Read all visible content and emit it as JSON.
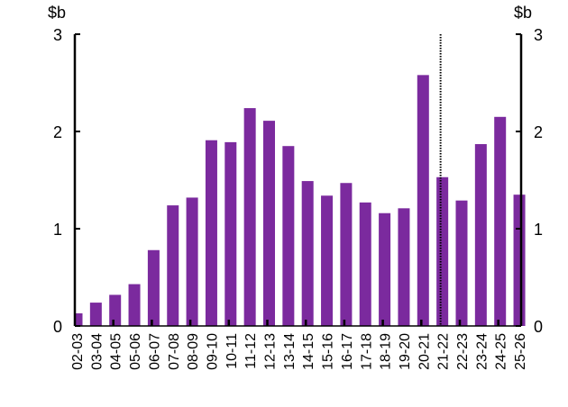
{
  "chart_data": {
    "type": "bar",
    "title": "",
    "ylabel_left": "$b",
    "ylabel_right": "$b",
    "ylim": [
      0,
      3
    ],
    "yticks": [
      "0",
      "1",
      "2",
      "3"
    ],
    "grid": false,
    "bar_color": "#7B2A9E",
    "projection_marker_category": "21-22",
    "categories": [
      "02-03",
      "03-04",
      "04-05",
      "05-06",
      "06-07",
      "07-08",
      "08-09",
      "09-10",
      "10-11",
      "11-12",
      "12-13",
      "13-14",
      "14-15",
      "15-16",
      "16-17",
      "17-18",
      "18-19",
      "19-20",
      "20-21",
      "21-22",
      "22-23",
      "23-24",
      "24-25",
      "25-26"
    ],
    "values": [
      0.13,
      0.24,
      0.32,
      0.43,
      0.78,
      1.24,
      1.32,
      1.91,
      1.89,
      2.24,
      2.11,
      1.85,
      1.49,
      1.34,
      1.47,
      1.27,
      1.16,
      1.21,
      2.58,
      1.53,
      1.29,
      1.87,
      2.15,
      1.35
    ]
  }
}
